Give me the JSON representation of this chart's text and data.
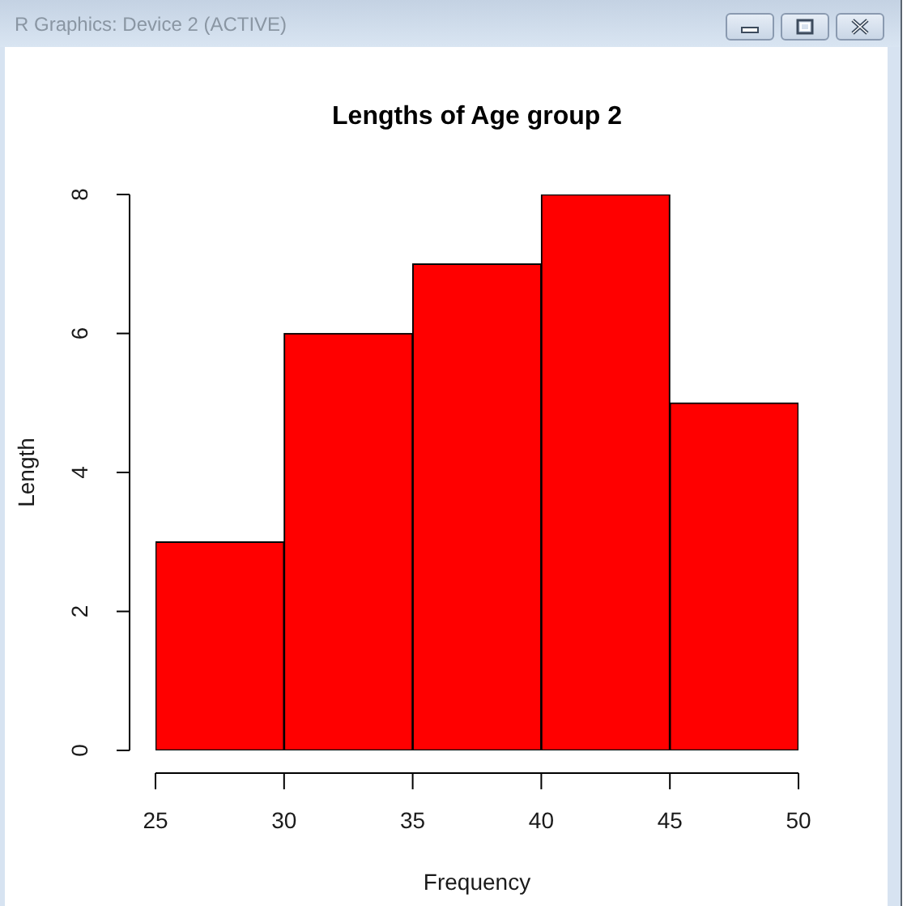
{
  "chart_data": {
    "type": "histogram",
    "title": "Lengths of Age group 2",
    "xlabel": "Frequency",
    "ylabel": "Length",
    "bins": [
      25,
      30,
      35,
      40,
      45,
      50
    ],
    "values": [
      3,
      6,
      7,
      8,
      5
    ],
    "color": "#ff0000",
    "xlim": [
      25,
      50
    ],
    "xticks": [
      25,
      30,
      35,
      40,
      45,
      50
    ],
    "ylim": [
      0,
      8
    ],
    "yticks": [
      0,
      2,
      4,
      6,
      8
    ],
    "annotations": [
      "R Graphics: Device 2 (ACTIVE)"
    ]
  }
}
